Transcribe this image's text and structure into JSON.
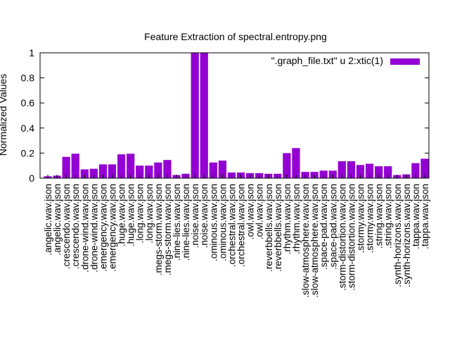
{
  "chart_data": {
    "type": "bar",
    "title": "Feature Extraction of spectral.entropy.png",
    "xlabel": "",
    "ylabel": "Normalized Values",
    "ylim": [
      0,
      1
    ],
    "yticks": [
      "0",
      "0.2",
      "0.4",
      "0.6",
      "0.8",
      "1"
    ],
    "ytick_values": [
      0,
      0.2,
      0.4,
      0.6,
      0.8,
      1
    ],
    "legend_position": "top-right",
    "grid": false,
    "categories": [
      ".angelic.wav.json",
      ".angelic.wav.json",
      ".crescendo.wav.json",
      ".crescendo.wav.json",
      ".drone-wind.wav.json",
      ".drone-wind.wav.json",
      ".emergency.wav.json",
      ".emergency.wav.json",
      ".huge.wav.json",
      ".huge.wav.json",
      ".long.wav.json",
      ".long.wav.json",
      ".megs-storm.wav.json",
      ".megs-storm.wav.json",
      ".nine-lies.wav.json",
      ".nine-lies.wav.json",
      ".noise.wav.json",
      ".noise.wav.json",
      ".ominous.wav.json",
      ".ominous.wav.json",
      ".orchestral.wav.json",
      ".orchestral.wav.json",
      ".owl.wav.json",
      ".owl.wav.json",
      ".reverbbells.wav.json",
      ".reverbbells.wav.json",
      ".rhythm.wav.json",
      ".rhythm.wav.json",
      ".slow-atmosphere.wav.json",
      ".slow-atmosphere.wav.json",
      ".space-pad.wav.json",
      ".space-pad.wav.json",
      ".storm-distortion.wav.json",
      ".storm-distortion.wav.json",
      ".stormy.wav.json",
      ".stormy.wav.json",
      ".string.wav.json",
      ".string.wav.json",
      ".synth-horizons.wav.json",
      ".synth-horizons.wav.json",
      ".tappa.wav.json",
      ".tappa.wav.json"
    ],
    "series": [
      {
        "name": "\".graph_file.txt\" u 2:xtic(1)",
        "color": "#9400d3",
        "values": [
          0.015,
          0.02,
          0.17,
          0.195,
          0.07,
          0.075,
          0.11,
          0.11,
          0.19,
          0.195,
          0.1,
          0.1,
          0.125,
          0.145,
          0.025,
          0.035,
          1.0,
          1.0,
          0.125,
          0.14,
          0.045,
          0.045,
          0.04,
          0.04,
          0.035,
          0.035,
          0.2,
          0.24,
          0.05,
          0.05,
          0.06,
          0.06,
          0.135,
          0.135,
          0.105,
          0.115,
          0.095,
          0.095,
          0.025,
          0.03,
          0.12,
          0.155
        ]
      }
    ]
  }
}
